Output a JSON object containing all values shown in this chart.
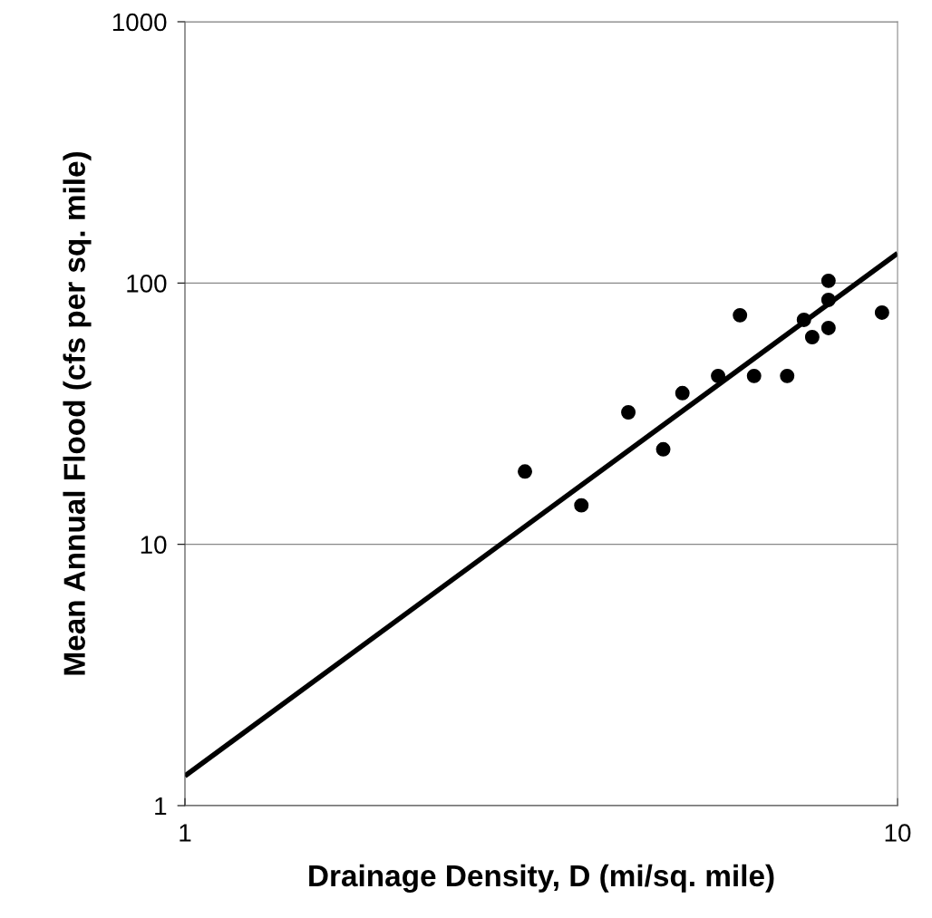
{
  "chart_data": {
    "type": "scatter",
    "xlabel": "Drainage Density, D (mi/sq. mile)",
    "ylabel": "Mean Annual Flood (cfs per sq. mile)",
    "log": "xy",
    "xlim": [
      1,
      10
    ],
    "xticks": [
      1,
      10
    ],
    "ylim": [
      1,
      1000
    ],
    "yticks": [
      1,
      10,
      100,
      1000
    ],
    "grid": "y",
    "series": [
      {
        "marker": "circle",
        "color": "#000000",
        "x": [
          3.0,
          3.6,
          4.19,
          4.69,
          4.99,
          5.6,
          6.01,
          6.29,
          7.0,
          7.39,
          7.59,
          8.0,
          8.0,
          8.0,
          9.51
        ],
        "values": [
          19,
          14.1,
          32,
          23.1,
          37.9,
          44.1,
          75.3,
          44.1,
          44.1,
          72.3,
          62.1,
          102,
          86.2,
          67.3,
          77.1
        ]
      },
      {
        "type": "line",
        "marker": "none",
        "color": "#000000",
        "x": [
          1,
          10
        ],
        "values": [
          1.3,
          130
        ]
      }
    ]
  }
}
